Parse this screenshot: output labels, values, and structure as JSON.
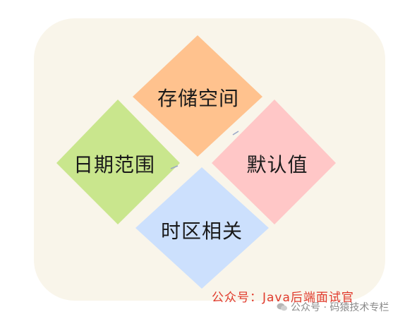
{
  "diagram": {
    "top_label": "存储空间",
    "left_label": "日期范围",
    "right_label": "默认值",
    "bottom_label": "时区相关"
  },
  "colors": {
    "panel_bg": "#f9f5ea",
    "top": "#ffc28e",
    "left": "#c9e68d",
    "right": "#ffc7c7",
    "bottom": "#cce0fd"
  },
  "watermark": {
    "red_text": "公众号：Java后端面试官",
    "gray_text": "公众号 · 码猿技术专栏",
    "icon": "wechat-icon"
  }
}
